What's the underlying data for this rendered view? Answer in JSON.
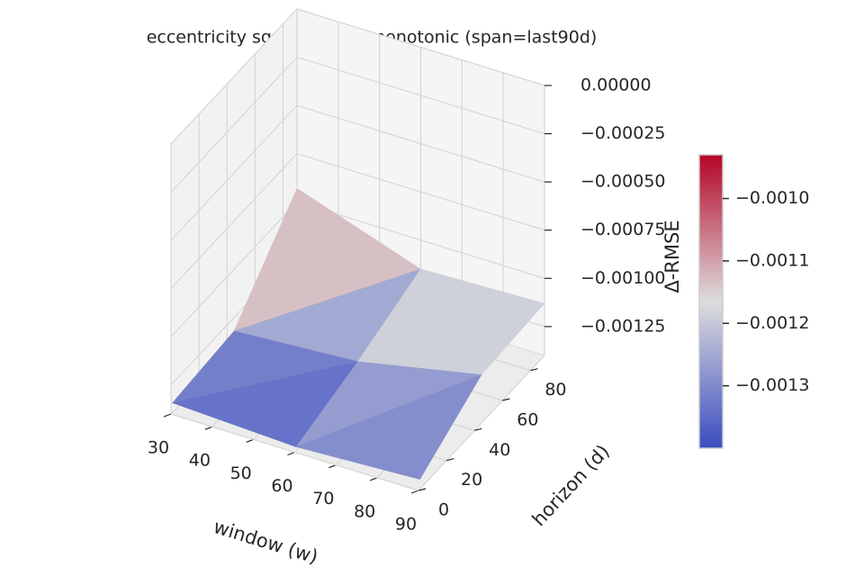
{
  "chart_data": {
    "type": "surface3d",
    "title": "eccentricity  sgp4 − sgp4_monotonic  (span=last90d)",
    "xlabel": "window (w)",
    "ylabel": "horizon (d)",
    "zlabel": "Δ-RMSE",
    "x": [
      30,
      60,
      90
    ],
    "y": [
      1,
      45,
      90
    ],
    "z": [
      [
        -0.00135,
        -0.00138,
        -0.00135
      ],
      [
        -0.00132,
        -0.00128,
        -0.00115
      ],
      [
        -0.00093,
        -0.00115,
        -0.00113
      ]
    ],
    "xlim": [
      30,
      90
    ],
    "ylim": [
      0,
      90
    ],
    "zlim": [
      -0.0014,
      0
    ],
    "xticks": [
      30,
      40,
      50,
      60,
      70,
      80,
      90
    ],
    "yticks": [
      0,
      20,
      40,
      60,
      80
    ],
    "zticks": [
      {
        "value": 0,
        "label": "0.00000"
      },
      {
        "value": -0.00025,
        "label": "−0.00025"
      },
      {
        "value": -0.0005,
        "label": "−0.00050"
      },
      {
        "value": -0.00075,
        "label": "−0.00075"
      },
      {
        "value": -0.001,
        "label": "−0.00100"
      },
      {
        "value": -0.00125,
        "label": "−0.00125"
      }
    ],
    "colormap": [
      "#3b4cc0",
      "#dddddd",
      "#b40426"
    ],
    "clim": [
      -0.0014,
      -0.00093
    ],
    "cticks": [
      {
        "value": -0.001,
        "label": "−0.0010"
      },
      {
        "value": -0.0011,
        "label": "−0.0011"
      },
      {
        "value": -0.0012,
        "label": "−0.0012"
      },
      {
        "value": -0.0013,
        "label": "−0.0013"
      }
    ]
  }
}
